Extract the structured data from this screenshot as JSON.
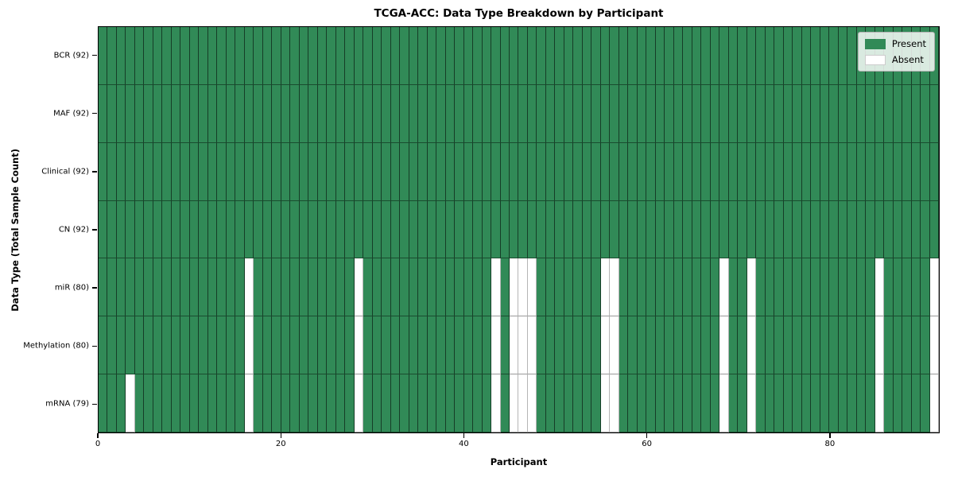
{
  "title": "TCGA-ACC: Data Type Breakdown by Participant",
  "chart_data": {
    "type": "heatmap",
    "title": "TCGA-ACC: Data Type Breakdown by Participant",
    "xlabel": "Participant",
    "ylabel": "Data Type (Total Sample Count)",
    "n_participants": 92,
    "xlim": [
      0,
      92
    ],
    "x_ticks": [
      0,
      20,
      40,
      60,
      80
    ],
    "grid": "cell-edges",
    "legend_position": "upper-right",
    "legend": [
      {
        "label": "Present",
        "color": "#318a57"
      },
      {
        "label": "Absent",
        "color": "#ffffff"
      }
    ],
    "colors": {
      "present": "#318a57",
      "absent": "#ffffff"
    },
    "rows": [
      {
        "label": "BCR (92)",
        "present_count": 92,
        "absent_participants": []
      },
      {
        "label": "MAF (92)",
        "present_count": 92,
        "absent_participants": []
      },
      {
        "label": "Clinical (92)",
        "present_count": 92,
        "absent_participants": []
      },
      {
        "label": "CN (92)",
        "present_count": 92,
        "absent_participants": []
      },
      {
        "label": "miR (80)",
        "present_count": 80,
        "absent_participants": [
          16,
          28,
          43,
          45,
          46,
          47,
          55,
          56,
          68,
          71,
          85,
          91
        ]
      },
      {
        "label": "Methylation (80)",
        "present_count": 80,
        "absent_participants": [
          16,
          28,
          43,
          45,
          46,
          47,
          55,
          56,
          68,
          71,
          85,
          91
        ]
      },
      {
        "label": "mRNA (79)",
        "present_count": 79,
        "absent_participants": [
          3,
          16,
          28,
          43,
          45,
          46,
          47,
          55,
          56,
          68,
          71,
          85,
          91
        ]
      }
    ]
  }
}
